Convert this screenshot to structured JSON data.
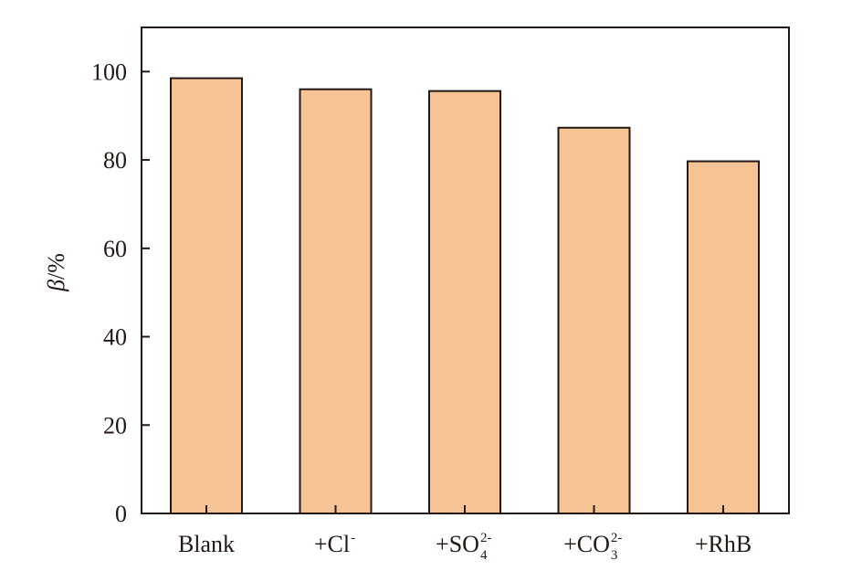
{
  "chart_data": {
    "type": "bar",
    "categories": [
      {
        "main": "Blank",
        "sup": "",
        "sub": ""
      },
      {
        "main": "+Cl",
        "sup": "-",
        "sub": ""
      },
      {
        "main": "+SO",
        "sup": "2-",
        "sub": "4"
      },
      {
        "main": "+CO",
        "sup": "2-",
        "sub": "3"
      },
      {
        "main": "+RhB",
        "sup": "",
        "sub": ""
      }
    ],
    "values": [
      98.5,
      96.0,
      95.6,
      87.3,
      79.7
    ],
    "xlabel": "",
    "ylabel_symbol": "β",
    "ylabel_unit": "/%",
    "ylim": [
      0,
      110
    ],
    "yticks": [
      0,
      20,
      40,
      60,
      80,
      100
    ],
    "grid": false,
    "legend": "none",
    "colors": {
      "bar_fill": "#F6C494",
      "bar_stroke": "#231815",
      "axis": "#231815"
    }
  }
}
